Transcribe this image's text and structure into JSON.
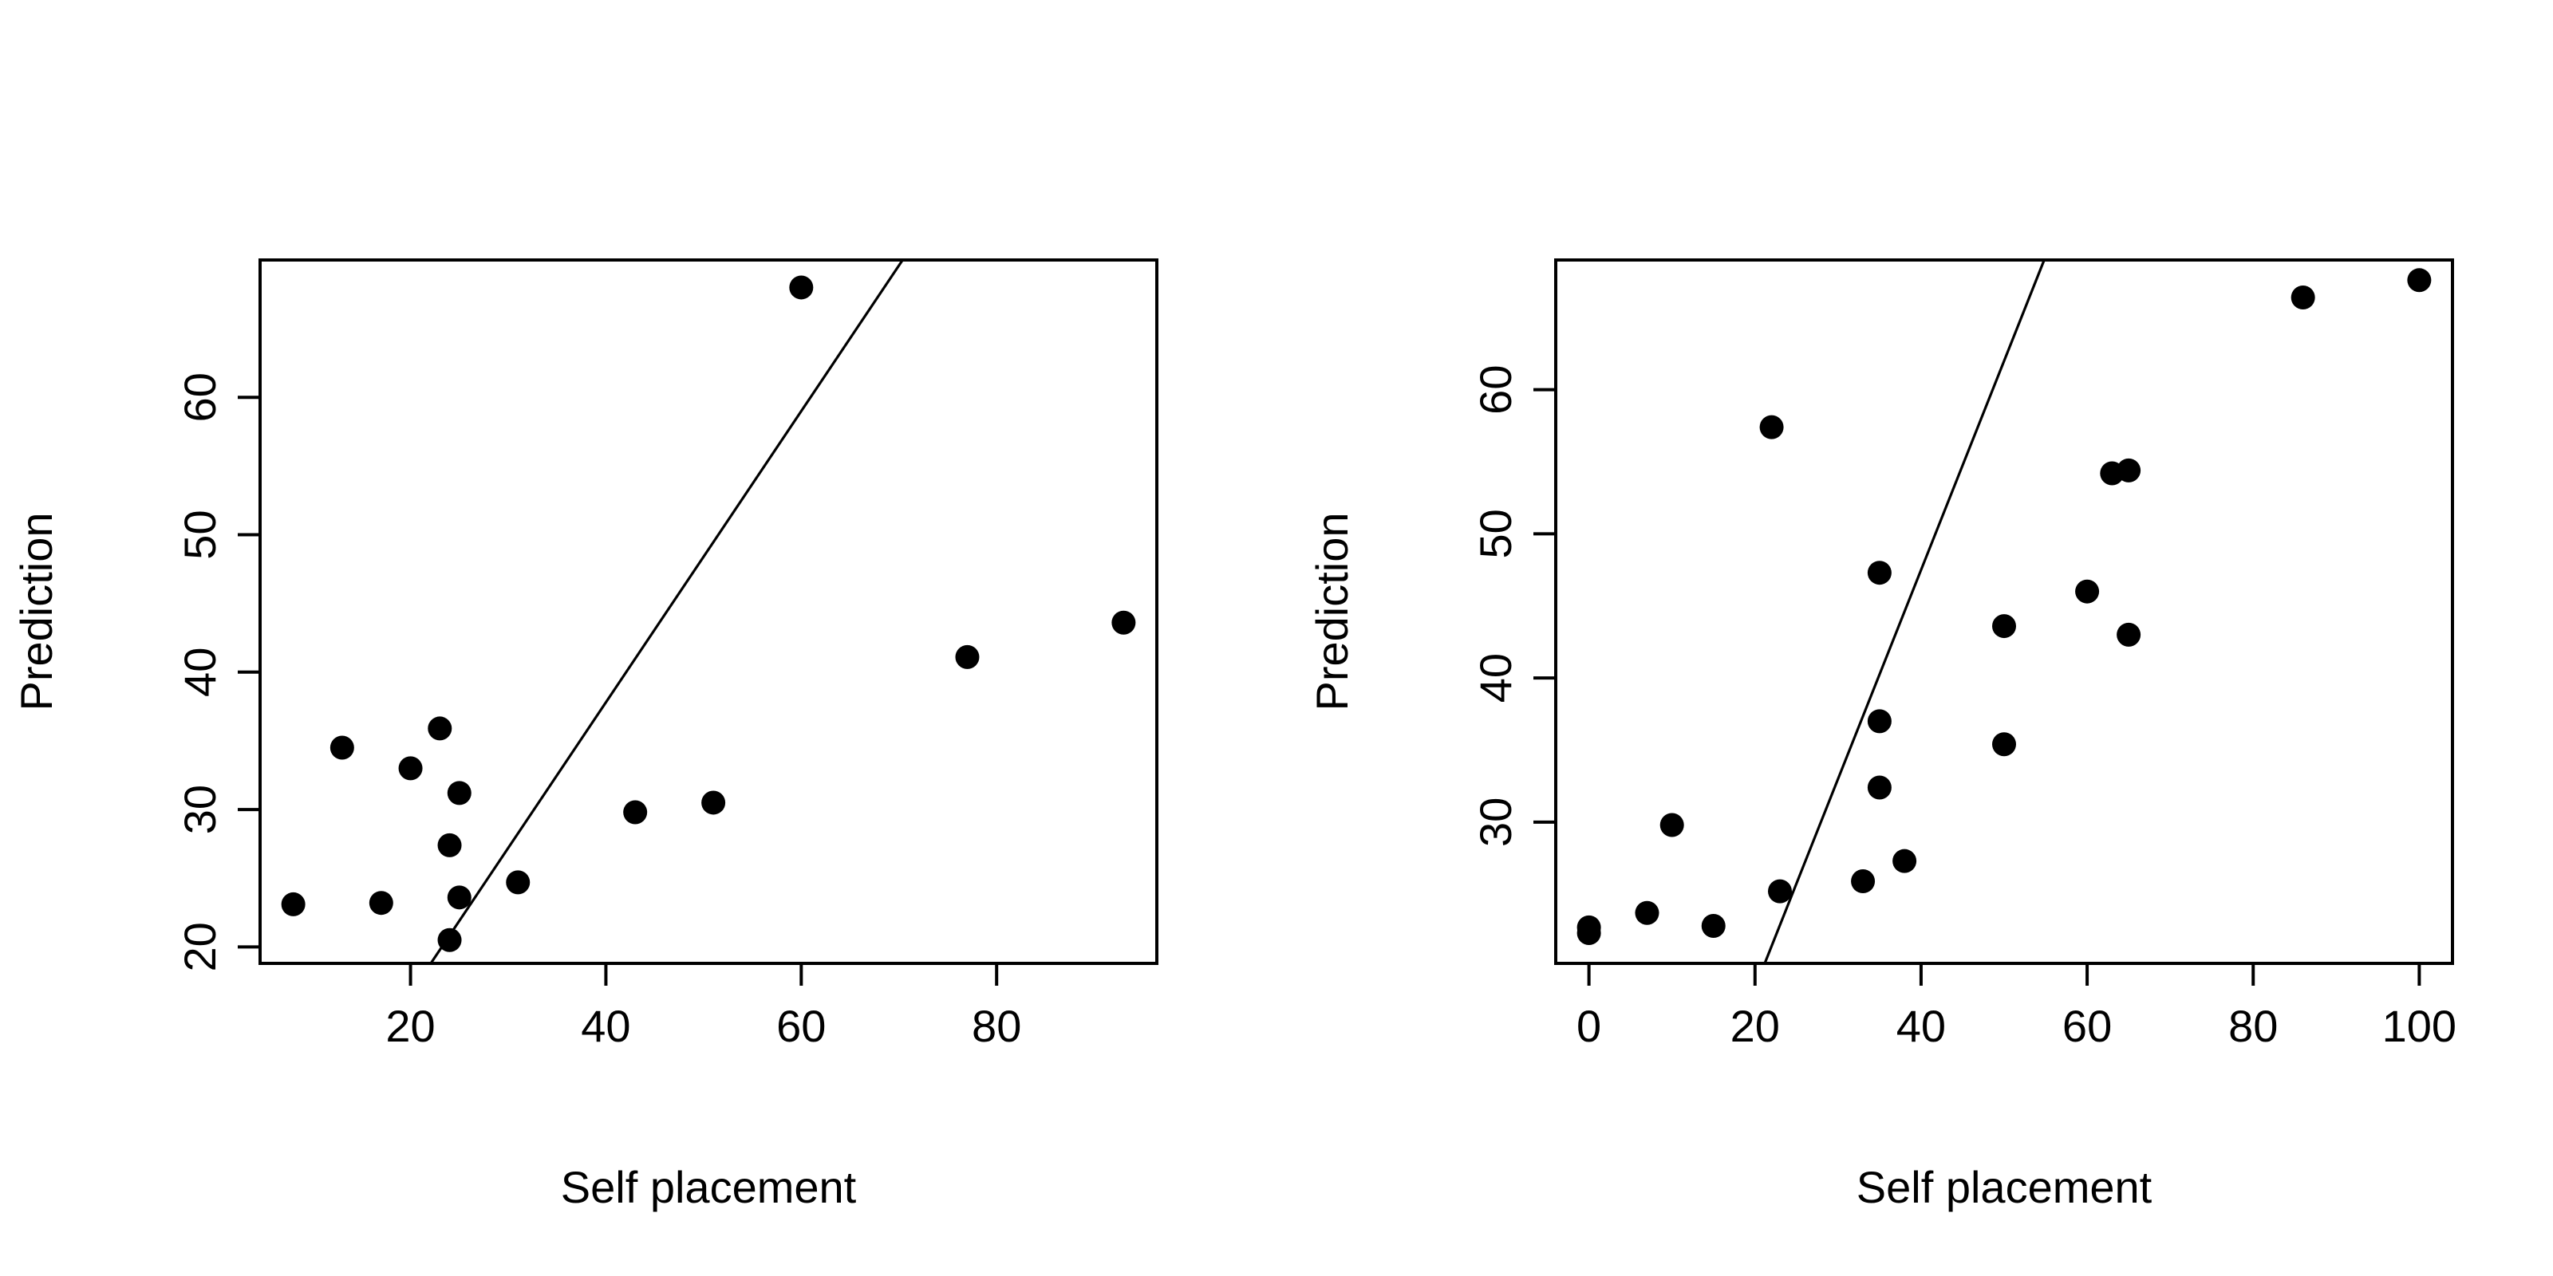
{
  "chart_data": [
    {
      "type": "scatter",
      "xlabel": "Self placement",
      "ylabel": "Prediction",
      "x_ticks": [
        20,
        40,
        60,
        80
      ],
      "y_ticks": [
        20,
        30,
        40,
        50,
        60
      ],
      "x_tick_labels": [
        "20",
        "40",
        "60",
        "80"
      ],
      "y_tick_labels": [
        "20",
        "30",
        "40",
        "50",
        "60"
      ],
      "xlim": [
        4.6,
        96.4
      ],
      "ylim": [
        18.8,
        70
      ],
      "reference_line": {
        "intercept": -4.6,
        "slope": 1.06
      },
      "points": [
        {
          "x": 8,
          "y": 23.1
        },
        {
          "x": 13,
          "y": 34.5
        },
        {
          "x": 17,
          "y": 23.2
        },
        {
          "x": 20,
          "y": 33.0
        },
        {
          "x": 23,
          "y": 35.9
        },
        {
          "x": 24,
          "y": 27.4
        },
        {
          "x": 24,
          "y": 20.5
        },
        {
          "x": 25,
          "y": 31.2
        },
        {
          "x": 25,
          "y": 23.6
        },
        {
          "x": 31,
          "y": 24.7
        },
        {
          "x": 43,
          "y": 29.8
        },
        {
          "x": 51,
          "y": 30.5
        },
        {
          "x": 60,
          "y": 68.0
        },
        {
          "x": 77,
          "y": 41.1
        },
        {
          "x": 93,
          "y": 43.6
        }
      ],
      "grid": false,
      "legend": "none"
    },
    {
      "type": "scatter",
      "xlabel": "Self placement",
      "ylabel": "Prediction",
      "x_ticks": [
        0,
        20,
        40,
        60,
        80,
        100
      ],
      "y_ticks": [
        30,
        40,
        50,
        60
      ],
      "x_tick_labels": [
        "0",
        "20",
        "40",
        "60",
        "80",
        "100"
      ],
      "y_tick_labels": [
        "30",
        "40",
        "50",
        "60"
      ],
      "xlim": [
        -4,
        104
      ],
      "ylim": [
        20.2,
        69.0
      ],
      "reference_line": {
        "intercept": -10.5,
        "slope": 1.45
      },
      "points": [
        {
          "x": 0,
          "y": 22.7
        },
        {
          "x": 0,
          "y": 22.3
        },
        {
          "x": 7,
          "y": 23.7
        },
        {
          "x": 10,
          "y": 29.8
        },
        {
          "x": 15,
          "y": 22.8
        },
        {
          "x": 22,
          "y": 57.4
        },
        {
          "x": 23,
          "y": 25.2
        },
        {
          "x": 33,
          "y": 25.9
        },
        {
          "x": 35,
          "y": 47.3
        },
        {
          "x": 35,
          "y": 37.0
        },
        {
          "x": 35,
          "y": 32.4
        },
        {
          "x": 38,
          "y": 27.3
        },
        {
          "x": 50,
          "y": 43.6
        },
        {
          "x": 50,
          "y": 35.4
        },
        {
          "x": 60,
          "y": 46.0
        },
        {
          "x": 63,
          "y": 54.2
        },
        {
          "x": 65,
          "y": 54.4
        },
        {
          "x": 65,
          "y": 43.0
        },
        {
          "x": 86,
          "y": 66.4
        },
        {
          "x": 100,
          "y": 67.6
        }
      ],
      "grid": false,
      "legend": "none"
    }
  ]
}
